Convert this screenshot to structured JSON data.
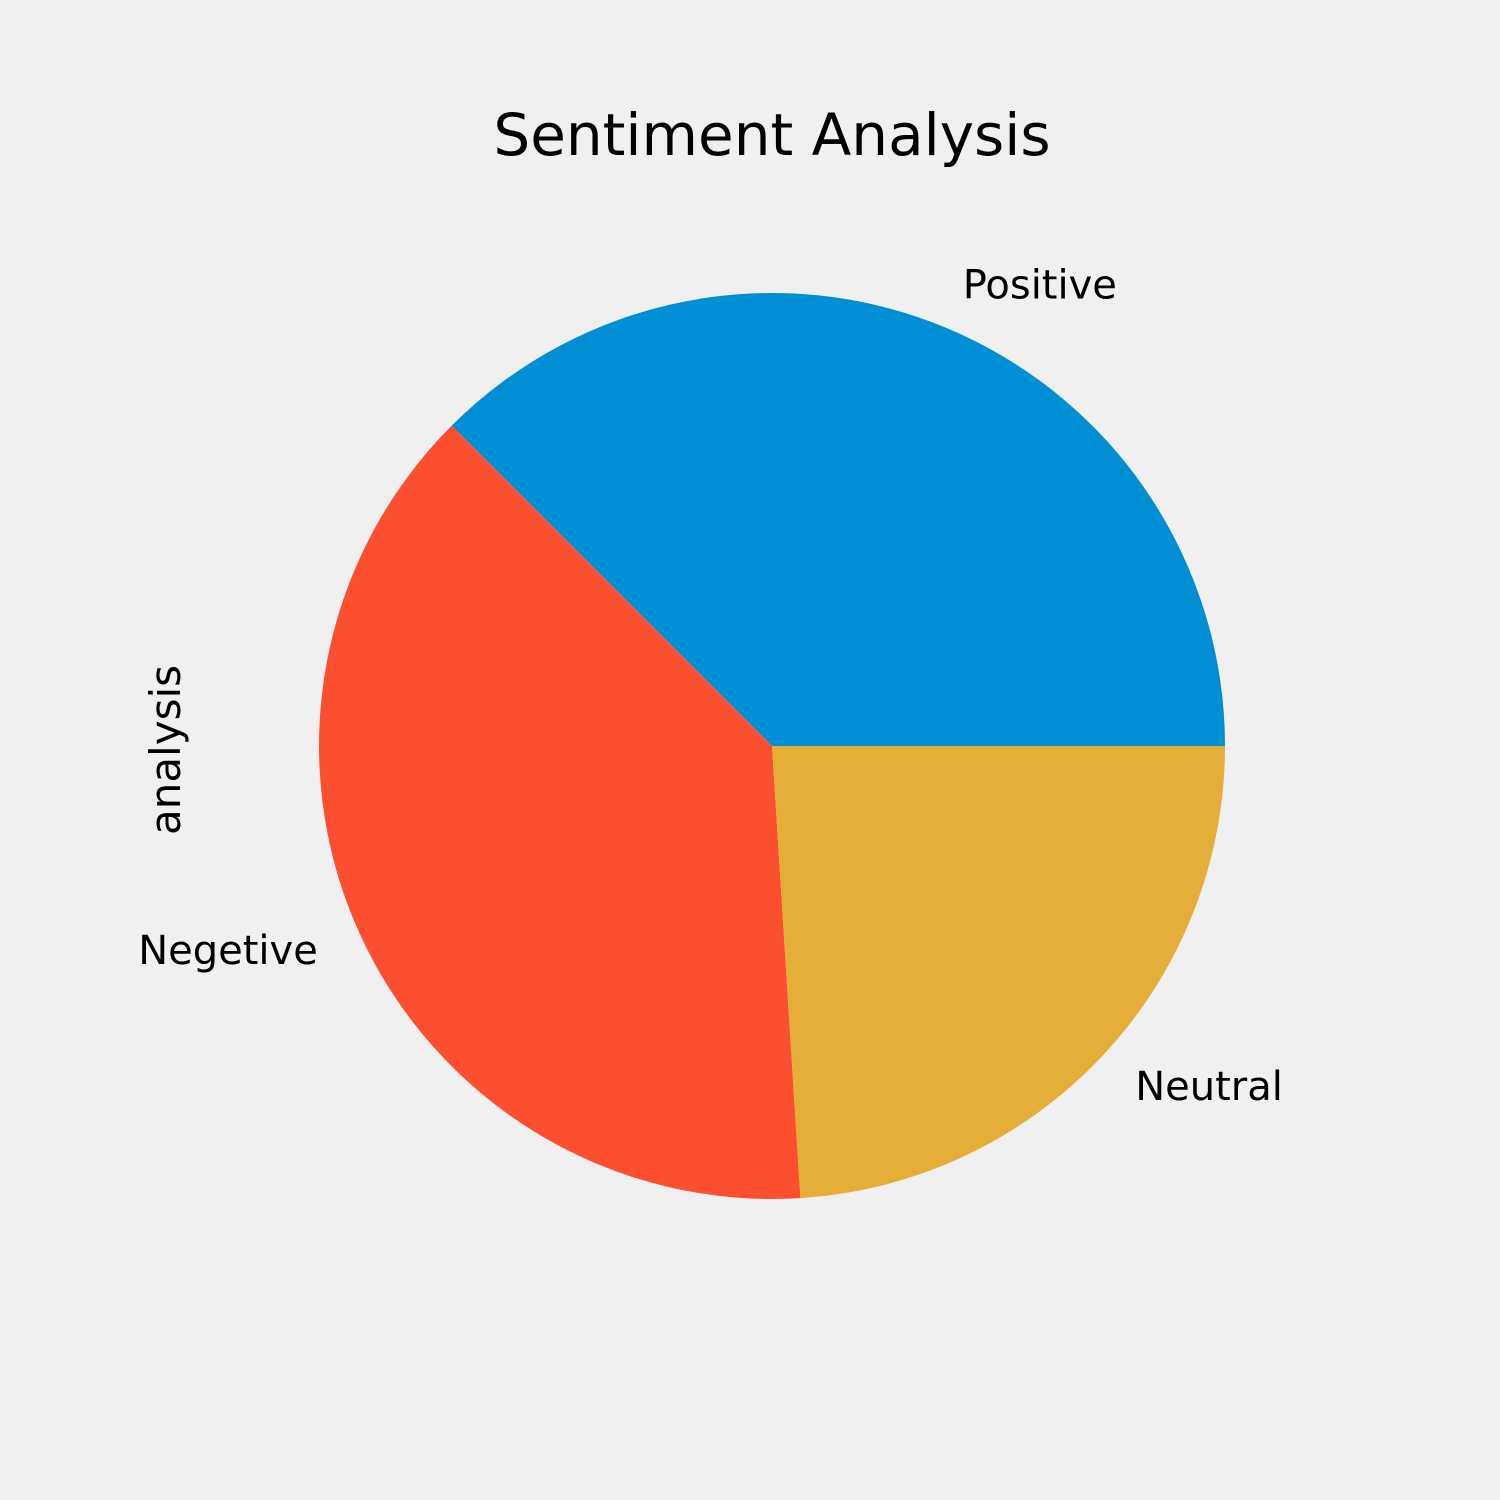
{
  "chart_data": {
    "type": "pie",
    "title": "Sentiment Analysis",
    "ylabel": "analysis",
    "start_angle_deg": 0,
    "direction": "counterclockwise",
    "slices": [
      {
        "label": "Positive",
        "value": 37.5,
        "color": "#008fd5"
      },
      {
        "label": "Negetive",
        "value": 38.5,
        "color": "#fc4f30"
      },
      {
        "label": "Neutral",
        "value": 24.0,
        "color": "#e5ae38"
      }
    ],
    "background": "#f0f0f0"
  }
}
